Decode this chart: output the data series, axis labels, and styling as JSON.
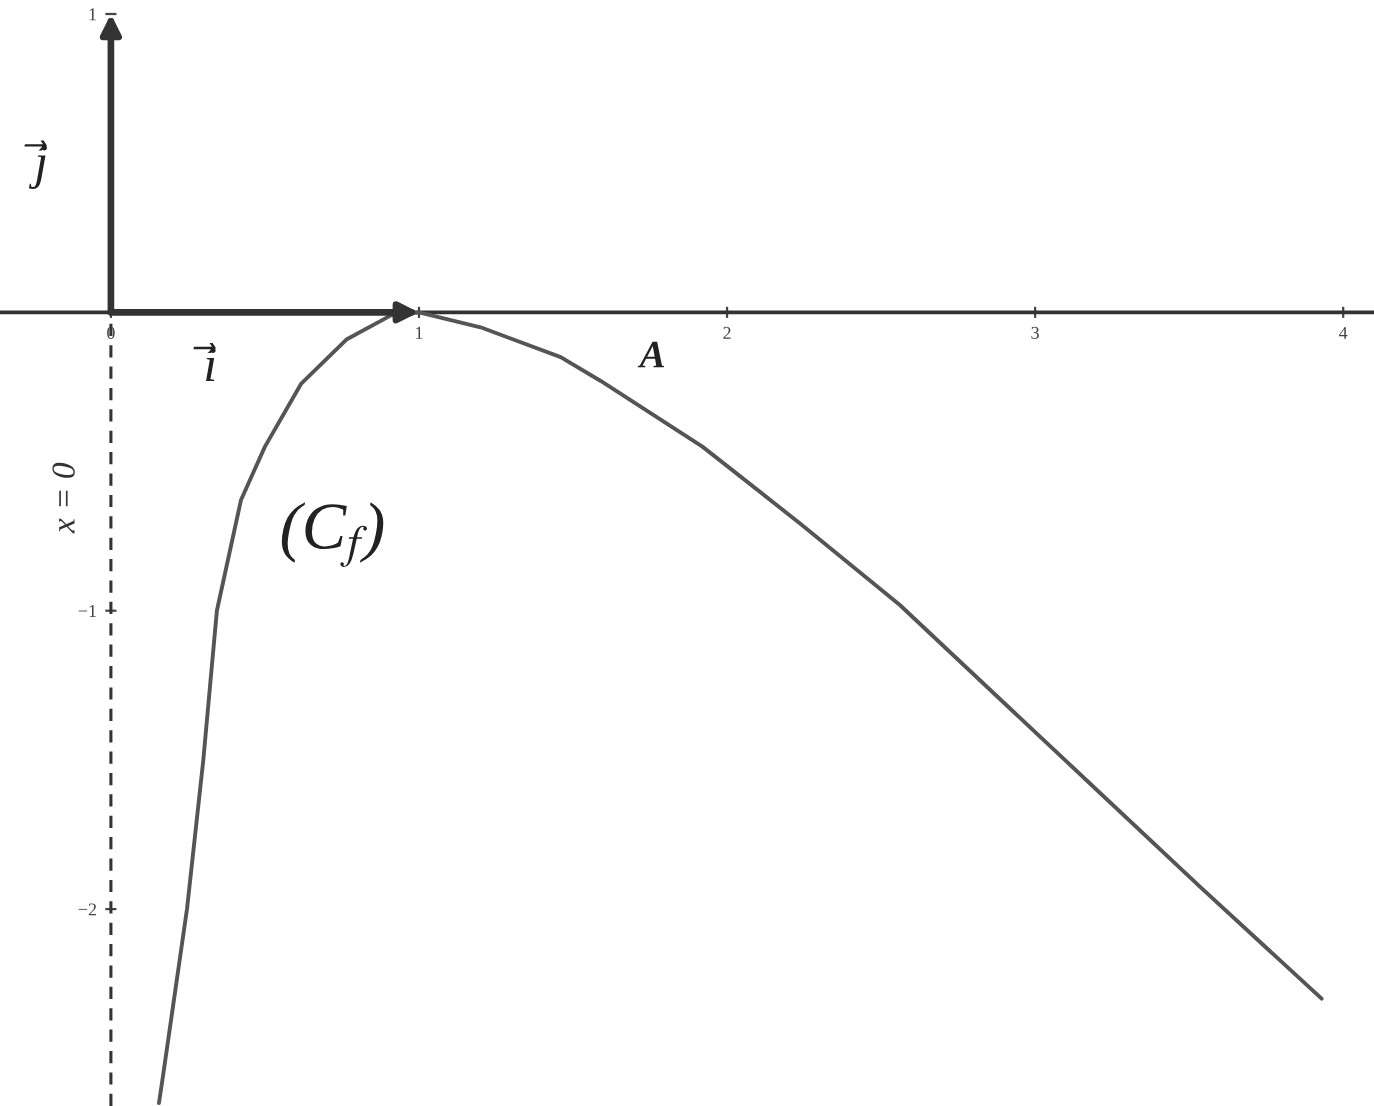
{
  "chart_data": {
    "type": "line",
    "x": [
      0.156,
      0.169,
      0.247,
      0.3,
      0.344,
      0.422,
      0.5,
      0.617,
      0.766,
      0.909,
      1.0,
      1.2,
      1.46,
      1.59,
      1.92,
      2.24,
      2.56,
      2.89,
      3.21,
      3.54,
      3.93
    ],
    "values": [
      -2.65,
      -2.56,
      -2.0,
      -1.5,
      -1.0,
      -0.63,
      -0.45,
      -0.24,
      -0.09,
      -0.01,
      0,
      -0.05,
      -0.15,
      -0.23,
      -0.45,
      -0.71,
      -0.98,
      -1.3,
      -1.61,
      -1.93,
      -2.3
    ],
    "color": "#555555",
    "line_style": "solid",
    "marker": "none",
    "xlim": [
      -0.36,
      4.1
    ],
    "ylim": [
      -2.66,
      1
    ],
    "xticks": [
      0,
      1,
      2,
      3,
      4
    ],
    "yticks": [
      1,
      {
        "value": -1,
        "label": "−1"
      },
      {
        "value": -2,
        "label": "−2"
      }
    ],
    "ref_lines": [
      {
        "axis": "x",
        "value": 0,
        "label": "x = 0",
        "line_style": "dashed",
        "color": "#333333"
      }
    ],
    "annotations": [
      "j⃗",
      "i⃗",
      "(C$_{f}$)",
      "A"
    ]
  }
}
